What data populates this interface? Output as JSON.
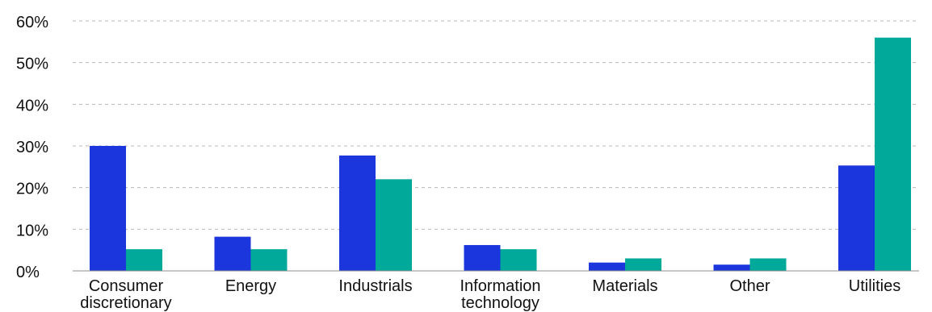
{
  "chart_data": {
    "type": "bar",
    "title": "",
    "xlabel": "",
    "ylabel": "",
    "ylim": [
      0,
      60
    ],
    "y_ticks": [
      {
        "value": 0,
        "label": "0%"
      },
      {
        "value": 10,
        "label": "10%"
      },
      {
        "value": 20,
        "label": "20%"
      },
      {
        "value": 30,
        "label": "30%"
      },
      {
        "value": 40,
        "label": "40%"
      },
      {
        "value": 50,
        "label": "50%"
      },
      {
        "value": 60,
        "label": "60%"
      }
    ],
    "grid": true,
    "legend": "none",
    "categories": [
      [
        "Consumer",
        "discretionary"
      ],
      [
        "Energy"
      ],
      [
        "Industrials"
      ],
      [
        "Information",
        "technology"
      ],
      [
        "Materials"
      ],
      [
        "Other"
      ],
      [
        "Utilities"
      ]
    ],
    "series": [
      {
        "color": "#1c36dd",
        "values": [
          30,
          8.2,
          27.7,
          6.2,
          2,
          1.5,
          25.3
        ]
      },
      {
        "color": "#00a99a",
        "values": [
          5.2,
          5.2,
          22,
          5.2,
          3,
          3,
          56
        ]
      }
    ]
  }
}
